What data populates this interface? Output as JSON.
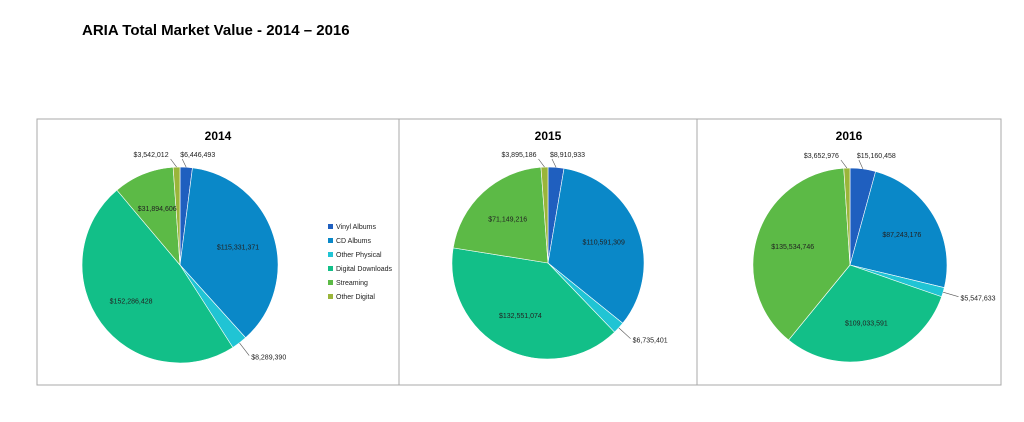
{
  "page": {
    "title": "ARIA Total Market Value - 2014 – 2016"
  },
  "legend": {
    "placement": "right of 2014 chart",
    "entries": [
      {
        "name": "Vinyl Albums",
        "color": "#1f5fbf"
      },
      {
        "name": "CD Albums",
        "color": "#0a88c8"
      },
      {
        "name": "Other Physical",
        "color": "#20c4d4"
      },
      {
        "name": "Digital Downloads",
        "color": "#12bf88"
      },
      {
        "name": "Streaming",
        "color": "#5cba46"
      },
      {
        "name": "Other Digital",
        "color": "#9ab53a"
      }
    ]
  },
  "chart_data": [
    {
      "type": "pie",
      "title": "2014",
      "series": [
        {
          "name": "Vinyl Albums",
          "value": 6446493,
          "label": "$6,446,493"
        },
        {
          "name": "CD Albums",
          "value": 115331371,
          "label": "$115,331,371"
        },
        {
          "name": "Other Physical",
          "value": 8289390,
          "label": "$8,289,390"
        },
        {
          "name": "Digital Downloads",
          "value": 152286428,
          "label": "$152,286,428"
        },
        {
          "name": "Streaming",
          "value": 31894606,
          "label": "$31,894,606"
        },
        {
          "name": "Other Digital",
          "value": 3542012,
          "label": "$3,542,012"
        }
      ]
    },
    {
      "type": "pie",
      "title": "2015",
      "series": [
        {
          "name": "Vinyl Albums",
          "value": 8910933,
          "label": "$8,910,933"
        },
        {
          "name": "CD Albums",
          "value": 110591309,
          "label": "$110,591,309"
        },
        {
          "name": "Other Physical",
          "value": 6735401,
          "label": "$6,735,401"
        },
        {
          "name": "Digital Downloads",
          "value": 132551074,
          "label": "$132,551,074"
        },
        {
          "name": "Streaming",
          "value": 71149216,
          "label": "$71,149,216"
        },
        {
          "name": "Other Digital",
          "value": 3895186,
          "label": "$3,895,186"
        }
      ]
    },
    {
      "type": "pie",
      "title": "2016",
      "series": [
        {
          "name": "Vinyl Albums",
          "value": 15160458,
          "label": "$15,160,458"
        },
        {
          "name": "CD Albums",
          "value": 87243176,
          "label": "$87,243,176"
        },
        {
          "name": "Other Physical",
          "value": 5547633,
          "label": "$5,547,633"
        },
        {
          "name": "Digital Downloads",
          "value": 109033591,
          "label": "$109,033,591"
        },
        {
          "name": "Streaming",
          "value": 135534746,
          "label": "$135,534,746"
        },
        {
          "name": "Other Digital",
          "value": 3652976,
          "label": "$3,652,976"
        }
      ]
    }
  ]
}
